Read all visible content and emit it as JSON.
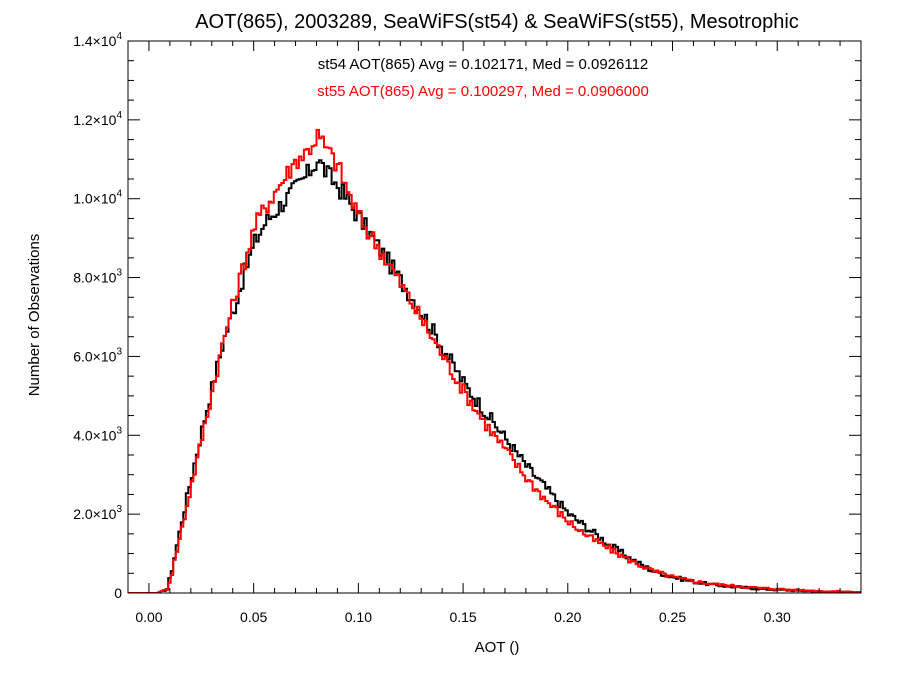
{
  "chart_data": {
    "type": "histogram",
    "title": "AOT(865), 2003289, SeaWiFS(st54) & SeaWiFS(st55), Mesotrophic",
    "xlabel": "AOT ()",
    "ylabel": "Number of Observations",
    "xlim": [
      -0.01,
      0.34
    ],
    "ylim": [
      0,
      14000
    ],
    "grid": false,
    "x_ticks": [
      {
        "value": 0.0,
        "label": "0.00"
      },
      {
        "value": 0.05,
        "label": "0.05"
      },
      {
        "value": 0.1,
        "label": "0.10"
      },
      {
        "value": 0.15,
        "label": "0.15"
      },
      {
        "value": 0.2,
        "label": "0.20"
      },
      {
        "value": 0.25,
        "label": "0.25"
      },
      {
        "value": 0.3,
        "label": "0.30"
      }
    ],
    "y_ticks": [
      {
        "value": 0,
        "label": "0",
        "exp": ""
      },
      {
        "value": 2000,
        "label": "2.0×10",
        "exp": "3"
      },
      {
        "value": 4000,
        "label": "4.0×10",
        "exp": "3"
      },
      {
        "value": 6000,
        "label": "6.0×10",
        "exp": "3"
      },
      {
        "value": 8000,
        "label": "8.0×10",
        "exp": "3"
      },
      {
        "value": 10000,
        "label": "1.0×10",
        "exp": "4"
      },
      {
        "value": 12000,
        "label": "1.2×10",
        "exp": "4"
      },
      {
        "value": 14000,
        "label": "1.4×10",
        "exp": "4"
      }
    ],
    "series": [
      {
        "name": "st54",
        "color": "#000000",
        "stats_text": "st54 AOT(865) Avg = 0.102171, Med = 0.0926112",
        "points": [
          [
            -0.01,
            0
          ],
          [
            0.0,
            0
          ],
          [
            0.004,
            0
          ],
          [
            0.008,
            100
          ],
          [
            0.01,
            500
          ],
          [
            0.012,
            1000
          ],
          [
            0.015,
            1800
          ],
          [
            0.02,
            3000
          ],
          [
            0.025,
            4200
          ],
          [
            0.03,
            5300
          ],
          [
            0.035,
            6400
          ],
          [
            0.04,
            7200
          ],
          [
            0.045,
            8100
          ],
          [
            0.05,
            8900
          ],
          [
            0.055,
            9400
          ],
          [
            0.06,
            9700
          ],
          [
            0.065,
            10000
          ],
          [
            0.07,
            10300
          ],
          [
            0.075,
            10600
          ],
          [
            0.08,
            11000
          ],
          [
            0.085,
            10600
          ],
          [
            0.09,
            10300
          ],
          [
            0.095,
            9900
          ],
          [
            0.1,
            9500
          ],
          [
            0.11,
            8700
          ],
          [
            0.12,
            7900
          ],
          [
            0.13,
            7100
          ],
          [
            0.14,
            6200
          ],
          [
            0.15,
            5300
          ],
          [
            0.16,
            4600
          ],
          [
            0.17,
            3900
          ],
          [
            0.18,
            3200
          ],
          [
            0.19,
            2600
          ],
          [
            0.2,
            2000
          ],
          [
            0.21,
            1600
          ],
          [
            0.22,
            1200
          ],
          [
            0.23,
            850
          ],
          [
            0.24,
            560
          ],
          [
            0.25,
            400
          ],
          [
            0.26,
            280
          ],
          [
            0.27,
            200
          ],
          [
            0.28,
            150
          ],
          [
            0.29,
            110
          ],
          [
            0.3,
            80
          ],
          [
            0.31,
            60
          ],
          [
            0.32,
            40
          ],
          [
            0.33,
            25
          ],
          [
            0.34,
            15
          ]
        ]
      },
      {
        "name": "st55",
        "color": "#ff0000",
        "stats_text": "st55 AOT(865) Avg = 0.100297, Med = 0.0906000",
        "points": [
          [
            -0.01,
            0
          ],
          [
            0.0,
            0
          ],
          [
            0.004,
            0
          ],
          [
            0.008,
            100
          ],
          [
            0.01,
            400
          ],
          [
            0.012,
            900
          ],
          [
            0.015,
            1600
          ],
          [
            0.02,
            2800
          ],
          [
            0.025,
            4000
          ],
          [
            0.03,
            5200
          ],
          [
            0.035,
            6400
          ],
          [
            0.04,
            7400
          ],
          [
            0.045,
            8400
          ],
          [
            0.05,
            9300
          ],
          [
            0.055,
            9800
          ],
          [
            0.06,
            10200
          ],
          [
            0.065,
            10600
          ],
          [
            0.07,
            11000
          ],
          [
            0.075,
            11200
          ],
          [
            0.08,
            11600
          ],
          [
            0.085,
            11200
          ],
          [
            0.09,
            10800
          ],
          [
            0.095,
            10100
          ],
          [
            0.1,
            9500
          ],
          [
            0.11,
            8700
          ],
          [
            0.12,
            7800
          ],
          [
            0.13,
            6900
          ],
          [
            0.14,
            6000
          ],
          [
            0.15,
            5100
          ],
          [
            0.16,
            4300
          ],
          [
            0.17,
            3600
          ],
          [
            0.18,
            2900
          ],
          [
            0.19,
            2300
          ],
          [
            0.2,
            1800
          ],
          [
            0.21,
            1400
          ],
          [
            0.22,
            1100
          ],
          [
            0.23,
            800
          ],
          [
            0.24,
            560
          ],
          [
            0.25,
            400
          ],
          [
            0.26,
            290
          ],
          [
            0.27,
            220
          ],
          [
            0.28,
            170
          ],
          [
            0.29,
            130
          ],
          [
            0.3,
            100
          ],
          [
            0.31,
            70
          ],
          [
            0.32,
            50
          ],
          [
            0.33,
            35
          ],
          [
            0.34,
            20
          ]
        ]
      }
    ]
  }
}
